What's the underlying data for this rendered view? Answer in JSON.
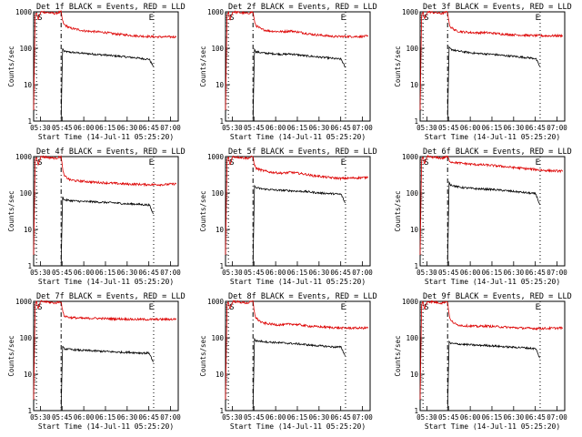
{
  "figure": {
    "title_template": "Det {n}f BLACK = Events, RED = LLD",
    "xlabel": "Start Time (14-Jul-11 05:25:20)",
    "ylabel": "Counts/sec",
    "x_ticks": [
      "05:30",
      "05:45",
      "06:00",
      "06:15",
      "06:30",
      "06:45",
      "07:00"
    ],
    "y_ticks": [
      "1",
      "10",
      "100",
      "1000"
    ],
    "marker_S": "S",
    "marker_E": "E",
    "colors": {
      "events": "#000000",
      "lld": "#dd0000",
      "axes": "#000000",
      "background": "#ffffff"
    }
  },
  "chart_data": [
    {
      "type": "line",
      "detector": "1f",
      "title": "Det 1f BLACK = Events, RED = LLD",
      "xlabel": "Start Time (14-Jul-11 05:25:20)",
      "ylabel": "Counts/sec",
      "x_unit": "minutes after 05:25:20",
      "xlim": [
        0,
        100
      ],
      "ylim": [
        1,
        1000
      ],
      "yscale": "log",
      "markers": {
        "S": 2,
        "start": 19,
        "E": 79,
        "end": 83
      },
      "series": [
        {
          "name": "Events",
          "color": "#000000",
          "x": [
            19,
            20,
            21,
            25,
            30,
            35,
            40,
            45,
            50,
            55,
            60,
            65,
            70,
            75,
            80,
            83
          ],
          "y": [
            1,
            100,
            82,
            78,
            75,
            72,
            70,
            67,
            65,
            62,
            60,
            57,
            55,
            52,
            50,
            30
          ]
        },
        {
          "name": "LLD",
          "color": "#dd0000",
          "x": [
            0,
            1,
            2,
            3,
            5,
            10,
            15,
            19,
            20,
            21,
            25,
            30,
            35,
            40,
            45,
            50,
            55,
            60,
            65,
            70,
            75,
            80,
            85,
            90,
            95,
            99
          ],
          "y": [
            2,
            800,
            1000,
            600,
            1000,
            950,
            900,
            1000,
            560,
            450,
            360,
            330,
            300,
            290,
            280,
            270,
            250,
            240,
            230,
            220,
            215,
            210,
            205,
            205,
            205,
            205
          ]
        }
      ]
    },
    {
      "type": "line",
      "detector": "2f",
      "title": "Det 2f BLACK = Events, RED = LLD",
      "xlabel": "Start Time (14-Jul-11 05:25:20)",
      "ylabel": "Counts/sec",
      "x_unit": "minutes after 05:25:20",
      "xlim": [
        0,
        100
      ],
      "ylim": [
        1,
        1000
      ],
      "yscale": "log",
      "markers": {
        "S": 2,
        "start": 19,
        "E": 79,
        "end": 83
      },
      "series": [
        {
          "name": "Events",
          "color": "#000000",
          "x": [
            19,
            20,
            21,
            25,
            30,
            35,
            40,
            45,
            50,
            55,
            60,
            65,
            70,
            75,
            80,
            83
          ],
          "y": [
            1,
            95,
            80,
            75,
            72,
            70,
            68,
            70,
            66,
            62,
            60,
            57,
            55,
            52,
            50,
            28
          ]
        },
        {
          "name": "LLD",
          "color": "#dd0000",
          "x": [
            0,
            1,
            2,
            3,
            5,
            10,
            15,
            19,
            20,
            21,
            25,
            30,
            35,
            40,
            45,
            50,
            55,
            60,
            65,
            70,
            75,
            80,
            85,
            90,
            95,
            99
          ],
          "y": [
            2,
            800,
            1000,
            600,
            1000,
            950,
            900,
            1000,
            550,
            420,
            330,
            300,
            290,
            285,
            300,
            280,
            260,
            240,
            230,
            220,
            210,
            210,
            210,
            210,
            210,
            215
          ]
        }
      ]
    },
    {
      "type": "line",
      "detector": "3f",
      "title": "Det 3f BLACK = Events, RED = LLD",
      "xlabel": "Start Time (14-Jul-11 05:25:20)",
      "ylabel": "Counts/sec",
      "x_unit": "minutes after 05:25:20",
      "xlim": [
        0,
        100
      ],
      "ylim": [
        1,
        1000
      ],
      "yscale": "log",
      "markers": {
        "S": 2,
        "start": 19,
        "E": 79,
        "end": 83
      },
      "series": [
        {
          "name": "Events",
          "color": "#000000",
          "x": [
            19,
            20,
            21,
            25,
            30,
            35,
            40,
            45,
            50,
            55,
            60,
            65,
            70,
            75,
            80,
            83
          ],
          "y": [
            1,
            110,
            95,
            85,
            80,
            75,
            72,
            70,
            68,
            65,
            62,
            60,
            57,
            55,
            52,
            30
          ]
        },
        {
          "name": "LLD",
          "color": "#dd0000",
          "x": [
            0,
            1,
            2,
            3,
            5,
            10,
            15,
            19,
            20,
            21,
            25,
            30,
            35,
            40,
            45,
            50,
            55,
            60,
            65,
            70,
            75,
            80,
            85,
            90,
            95,
            99
          ],
          "y": [
            2,
            800,
            1000,
            600,
            1000,
            950,
            900,
            1000,
            500,
            380,
            300,
            280,
            270,
            265,
            270,
            260,
            250,
            240,
            235,
            230,
            225,
            222,
            220,
            220,
            220,
            222
          ]
        }
      ]
    },
    {
      "type": "line",
      "detector": "4f",
      "title": "Det 4f BLACK = Events, RED = LLD",
      "xlabel": "Start Time (14-Jul-11 05:25:20)",
      "ylabel": "Counts/sec",
      "x_unit": "minutes after 05:25:20",
      "xlim": [
        0,
        100
      ],
      "ylim": [
        1,
        1000
      ],
      "yscale": "log",
      "markers": {
        "S": 2,
        "start": 19,
        "E": 79,
        "end": 83
      },
      "series": [
        {
          "name": "Events",
          "color": "#000000",
          "x": [
            19,
            20,
            21,
            25,
            30,
            35,
            40,
            45,
            50,
            55,
            60,
            65,
            70,
            75,
            80,
            83
          ],
          "y": [
            1,
            80,
            65,
            62,
            60,
            58,
            58,
            56,
            55,
            54,
            52,
            50,
            50,
            48,
            47,
            25
          ]
        },
        {
          "name": "LLD",
          "color": "#dd0000",
          "x": [
            0,
            1,
            2,
            3,
            5,
            10,
            15,
            19,
            20,
            21,
            25,
            30,
            35,
            40,
            45,
            50,
            55,
            60,
            65,
            70,
            75,
            80,
            85,
            90,
            95,
            99
          ],
          "y": [
            2,
            800,
            1000,
            600,
            1000,
            950,
            900,
            1000,
            480,
            300,
            230,
            215,
            210,
            200,
            195,
            190,
            185,
            180,
            175,
            175,
            172,
            170,
            170,
            170,
            175,
            180
          ]
        }
      ]
    },
    {
      "type": "line",
      "detector": "5f",
      "title": "Det 5f BLACK = Events, RED = LLD",
      "xlabel": "Start Time (14-Jul-11 05:25:20)",
      "ylabel": "Counts/sec",
      "x_unit": "minutes after 05:25:20",
      "xlim": [
        0,
        100
      ],
      "ylim": [
        1,
        1000
      ],
      "yscale": "log",
      "markers": {
        "S": 2,
        "start": 19,
        "E": 79,
        "end": 83
      },
      "series": [
        {
          "name": "Events",
          "color": "#000000",
          "x": [
            19,
            20,
            21,
            25,
            30,
            35,
            40,
            45,
            50,
            55,
            60,
            65,
            70,
            75,
            80,
            83
          ],
          "y": [
            1,
            160,
            140,
            130,
            125,
            120,
            118,
            115,
            112,
            110,
            105,
            100,
            98,
            95,
            92,
            50
          ]
        },
        {
          "name": "LLD",
          "color": "#dd0000",
          "x": [
            0,
            1,
            2,
            3,
            5,
            10,
            15,
            19,
            20,
            21,
            25,
            30,
            35,
            40,
            45,
            50,
            55,
            60,
            65,
            70,
            75,
            80,
            85,
            90,
            95,
            99
          ],
          "y": [
            2,
            800,
            1000,
            600,
            1000,
            950,
            900,
            1000,
            600,
            480,
            420,
            380,
            360,
            350,
            370,
            350,
            330,
            300,
            290,
            270,
            260,
            250,
            255,
            260,
            265,
            270
          ]
        }
      ]
    },
    {
      "type": "line",
      "detector": "6f",
      "title": "Det 6f BLACK = Events, RED = LLD",
      "xlabel": "Start Time (14-Jul-11 05:25:20)",
      "ylabel": "Counts/sec",
      "x_unit": "minutes after 05:25:20",
      "xlim": [
        0,
        100
      ],
      "ylim": [
        1,
        1000
      ],
      "yscale": "log",
      "markers": {
        "S": 2,
        "start": 19,
        "E": 79,
        "end": 83
      },
      "series": [
        {
          "name": "Events",
          "color": "#000000",
          "x": [
            19,
            20,
            21,
            25,
            30,
            35,
            40,
            45,
            50,
            55,
            60,
            65,
            70,
            75,
            80,
            83
          ],
          "y": [
            1,
            200,
            170,
            150,
            140,
            135,
            130,
            128,
            125,
            120,
            115,
            110,
            105,
            100,
            95,
            45
          ]
        },
        {
          "name": "LLD",
          "color": "#dd0000",
          "x": [
            0,
            1,
            2,
            3,
            5,
            10,
            15,
            19,
            20,
            21,
            25,
            30,
            35,
            40,
            45,
            50,
            55,
            60,
            65,
            70,
            75,
            80,
            85,
            90,
            95,
            99
          ],
          "y": [
            2,
            800,
            1000,
            600,
            1000,
            950,
            900,
            1000,
            800,
            720,
            680,
            650,
            620,
            600,
            590,
            570,
            550,
            520,
            500,
            480,
            460,
            440,
            420,
            410,
            400,
            400
          ]
        }
      ]
    },
    {
      "type": "line",
      "detector": "7f",
      "title": "Det 7f BLACK = Events, RED = LLD",
      "xlabel": "Start Time (14-Jul-11 05:25:20)",
      "ylabel": "Counts/sec",
      "x_unit": "minutes after 05:25:20",
      "xlim": [
        0,
        100
      ],
      "ylim": [
        1,
        1000
      ],
      "yscale": "log",
      "markers": {
        "S": 2,
        "start": 19,
        "E": 79,
        "end": 83
      },
      "series": [
        {
          "name": "Events",
          "color": "#000000",
          "x": [
            19,
            20,
            21,
            25,
            30,
            35,
            40,
            45,
            50,
            55,
            60,
            65,
            70,
            75,
            80,
            83
          ],
          "y": [
            1,
            60,
            50,
            48,
            46,
            45,
            44,
            43,
            42,
            41,
            40,
            40,
            39,
            38,
            38,
            20
          ]
        },
        {
          "name": "LLD",
          "color": "#dd0000",
          "x": [
            0,
            1,
            2,
            3,
            5,
            10,
            15,
            19,
            20,
            21,
            25,
            30,
            35,
            40,
            45,
            50,
            55,
            60,
            65,
            70,
            75,
            80,
            85,
            90,
            95,
            99
          ],
          "y": [
            2,
            800,
            1000,
            600,
            1000,
            950,
            900,
            1000,
            550,
            400,
            360,
            350,
            340,
            345,
            340,
            335,
            330,
            330,
            325,
            320,
            320,
            318,
            320,
            320,
            322,
            325
          ]
        }
      ]
    },
    {
      "type": "line",
      "detector": "8f",
      "title": "Det 8f BLACK = Events, RED = LLD",
      "xlabel": "Start Time (14-Jul-11 05:25:20)",
      "ylabel": "Counts/sec",
      "x_unit": "minutes after 05:25:20",
      "xlim": [
        0,
        100
      ],
      "ylim": [
        1,
        1000
      ],
      "yscale": "log",
      "markers": {
        "S": 2,
        "start": 19,
        "E": 79,
        "end": 83
      },
      "series": [
        {
          "name": "Events",
          "color": "#000000",
          "x": [
            19,
            20,
            21,
            25,
            30,
            35,
            40,
            45,
            50,
            55,
            60,
            65,
            70,
            75,
            80,
            83
          ],
          "y": [
            1,
            95,
            82,
            80,
            76,
            74,
            72,
            70,
            68,
            65,
            62,
            60,
            58,
            56,
            55,
            30
          ]
        },
        {
          "name": "LLD",
          "color": "#dd0000",
          "x": [
            0,
            1,
            2,
            3,
            5,
            10,
            15,
            19,
            20,
            21,
            25,
            30,
            35,
            40,
            45,
            50,
            55,
            60,
            65,
            70,
            75,
            80,
            85,
            90,
            95,
            99
          ],
          "y": [
            2,
            800,
            1000,
            600,
            1000,
            950,
            900,
            1000,
            500,
            350,
            260,
            240,
            230,
            225,
            240,
            230,
            215,
            205,
            200,
            195,
            190,
            185,
            185,
            185,
            185,
            188
          ]
        }
      ]
    },
    {
      "type": "line",
      "detector": "9f",
      "title": "Det 9f BLACK = Events, RED = LLD",
      "xlabel": "Start Time (14-Jul-11 05:25:20)",
      "ylabel": "Counts/sec",
      "x_unit": "minutes after 05:25:20",
      "xlim": [
        0,
        100
      ],
      "ylim": [
        1,
        1000
      ],
      "yscale": "log",
      "markers": {
        "S": 2,
        "start": 19,
        "E": 79,
        "end": 83
      },
      "series": [
        {
          "name": "Events",
          "color": "#000000",
          "x": [
            19,
            20,
            21,
            25,
            30,
            35,
            40,
            45,
            50,
            55,
            60,
            65,
            70,
            75,
            80,
            83
          ],
          "y": [
            1,
            80,
            70,
            68,
            66,
            64,
            62,
            62,
            60,
            58,
            56,
            55,
            54,
            52,
            50,
            26
          ]
        },
        {
          "name": "LLD",
          "color": "#dd0000",
          "x": [
            0,
            1,
            2,
            3,
            5,
            10,
            15,
            19,
            20,
            21,
            25,
            30,
            35,
            40,
            45,
            50,
            55,
            60,
            65,
            70,
            75,
            80,
            85,
            90,
            95,
            99
          ],
          "y": [
            2,
            800,
            1000,
            600,
            1000,
            950,
            900,
            1000,
            450,
            300,
            230,
            215,
            210,
            205,
            210,
            205,
            200,
            195,
            190,
            185,
            182,
            180,
            180,
            182,
            185,
            188
          ]
        }
      ]
    }
  ]
}
